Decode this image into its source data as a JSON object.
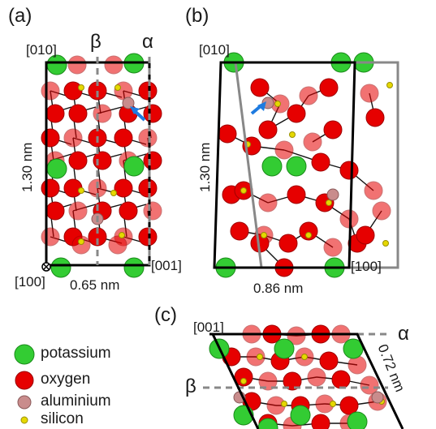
{
  "panels": {
    "a": "(a)",
    "b": "(b)",
    "c": "(c)"
  },
  "panel_a": {
    "top_axis": "[010]",
    "bottom_left_axis": "[100]",
    "right_axis": "[001]",
    "height_label": "1.30 nm",
    "width_label": "0.65 nm",
    "beta": "β",
    "alpha": "α"
  },
  "panel_b": {
    "top_axis": "[010]",
    "right_axis": "[100]",
    "height_label": "1.30 nm",
    "width_label": "0.86 nm"
  },
  "panel_c": {
    "top_axis": "[001]",
    "alpha": "α",
    "beta": "β",
    "side_label": "0.72 nm"
  },
  "legend": {
    "items": [
      {
        "label": "potassium",
        "color": "#33cc33"
      },
      {
        "label": "oxygen",
        "color": "#e60000"
      },
      {
        "label": "aluminium",
        "color": "#c98c8c"
      },
      {
        "label": "silicon",
        "color": "#e6d800"
      }
    ]
  },
  "colors": {
    "potassium": "#33cc33",
    "oxygen": "#e60000",
    "oxygen_faded": "#f08080",
    "aluminium": "#c98c8c",
    "silicon": "#e6d800",
    "arrow": "#1e7be0"
  }
}
